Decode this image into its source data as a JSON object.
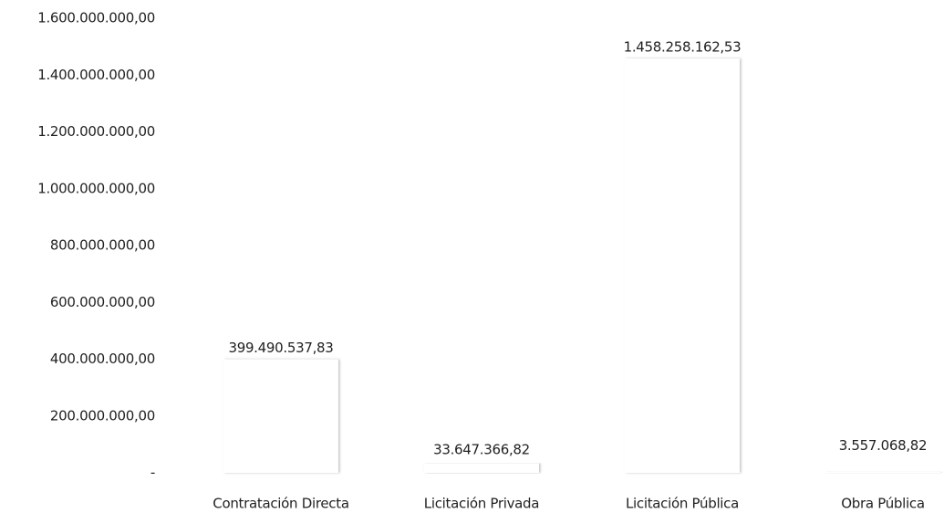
{
  "chart_data": {
    "type": "bar",
    "categories": [
      "Contratación Directa",
      "Licitación Privada",
      "Licitación Pública",
      "Obra Pública"
    ],
    "values": [
      399490537.83,
      33647366.82,
      1458258162.53,
      3557068.82
    ],
    "value_labels": [
      "399.490.537,83",
      "33.647.366,82",
      "1.458.258.162,53",
      "3.557.068,82"
    ],
    "color": "#ffffff",
    "ylim": [
      0,
      1600000000
    ],
    "yticks": [
      {
        "value": 0,
        "label": "-"
      },
      {
        "value": 200000000,
        "label": "200.000.000,00"
      },
      {
        "value": 400000000,
        "label": "400.000.000,00"
      },
      {
        "value": 600000000,
        "label": "600.000.000,00"
      },
      {
        "value": 800000000,
        "label": "800.000.000,00"
      },
      {
        "value": 1000000000,
        "label": "1.000.000.000,00"
      },
      {
        "value": 1200000000,
        "label": "1.200.000.000,00"
      },
      {
        "value": 1400000000,
        "label": "1.400.000.000,00"
      },
      {
        "value": 1600000000,
        "label": "1.600.000.000,00"
      }
    ],
    "grid": false
  }
}
